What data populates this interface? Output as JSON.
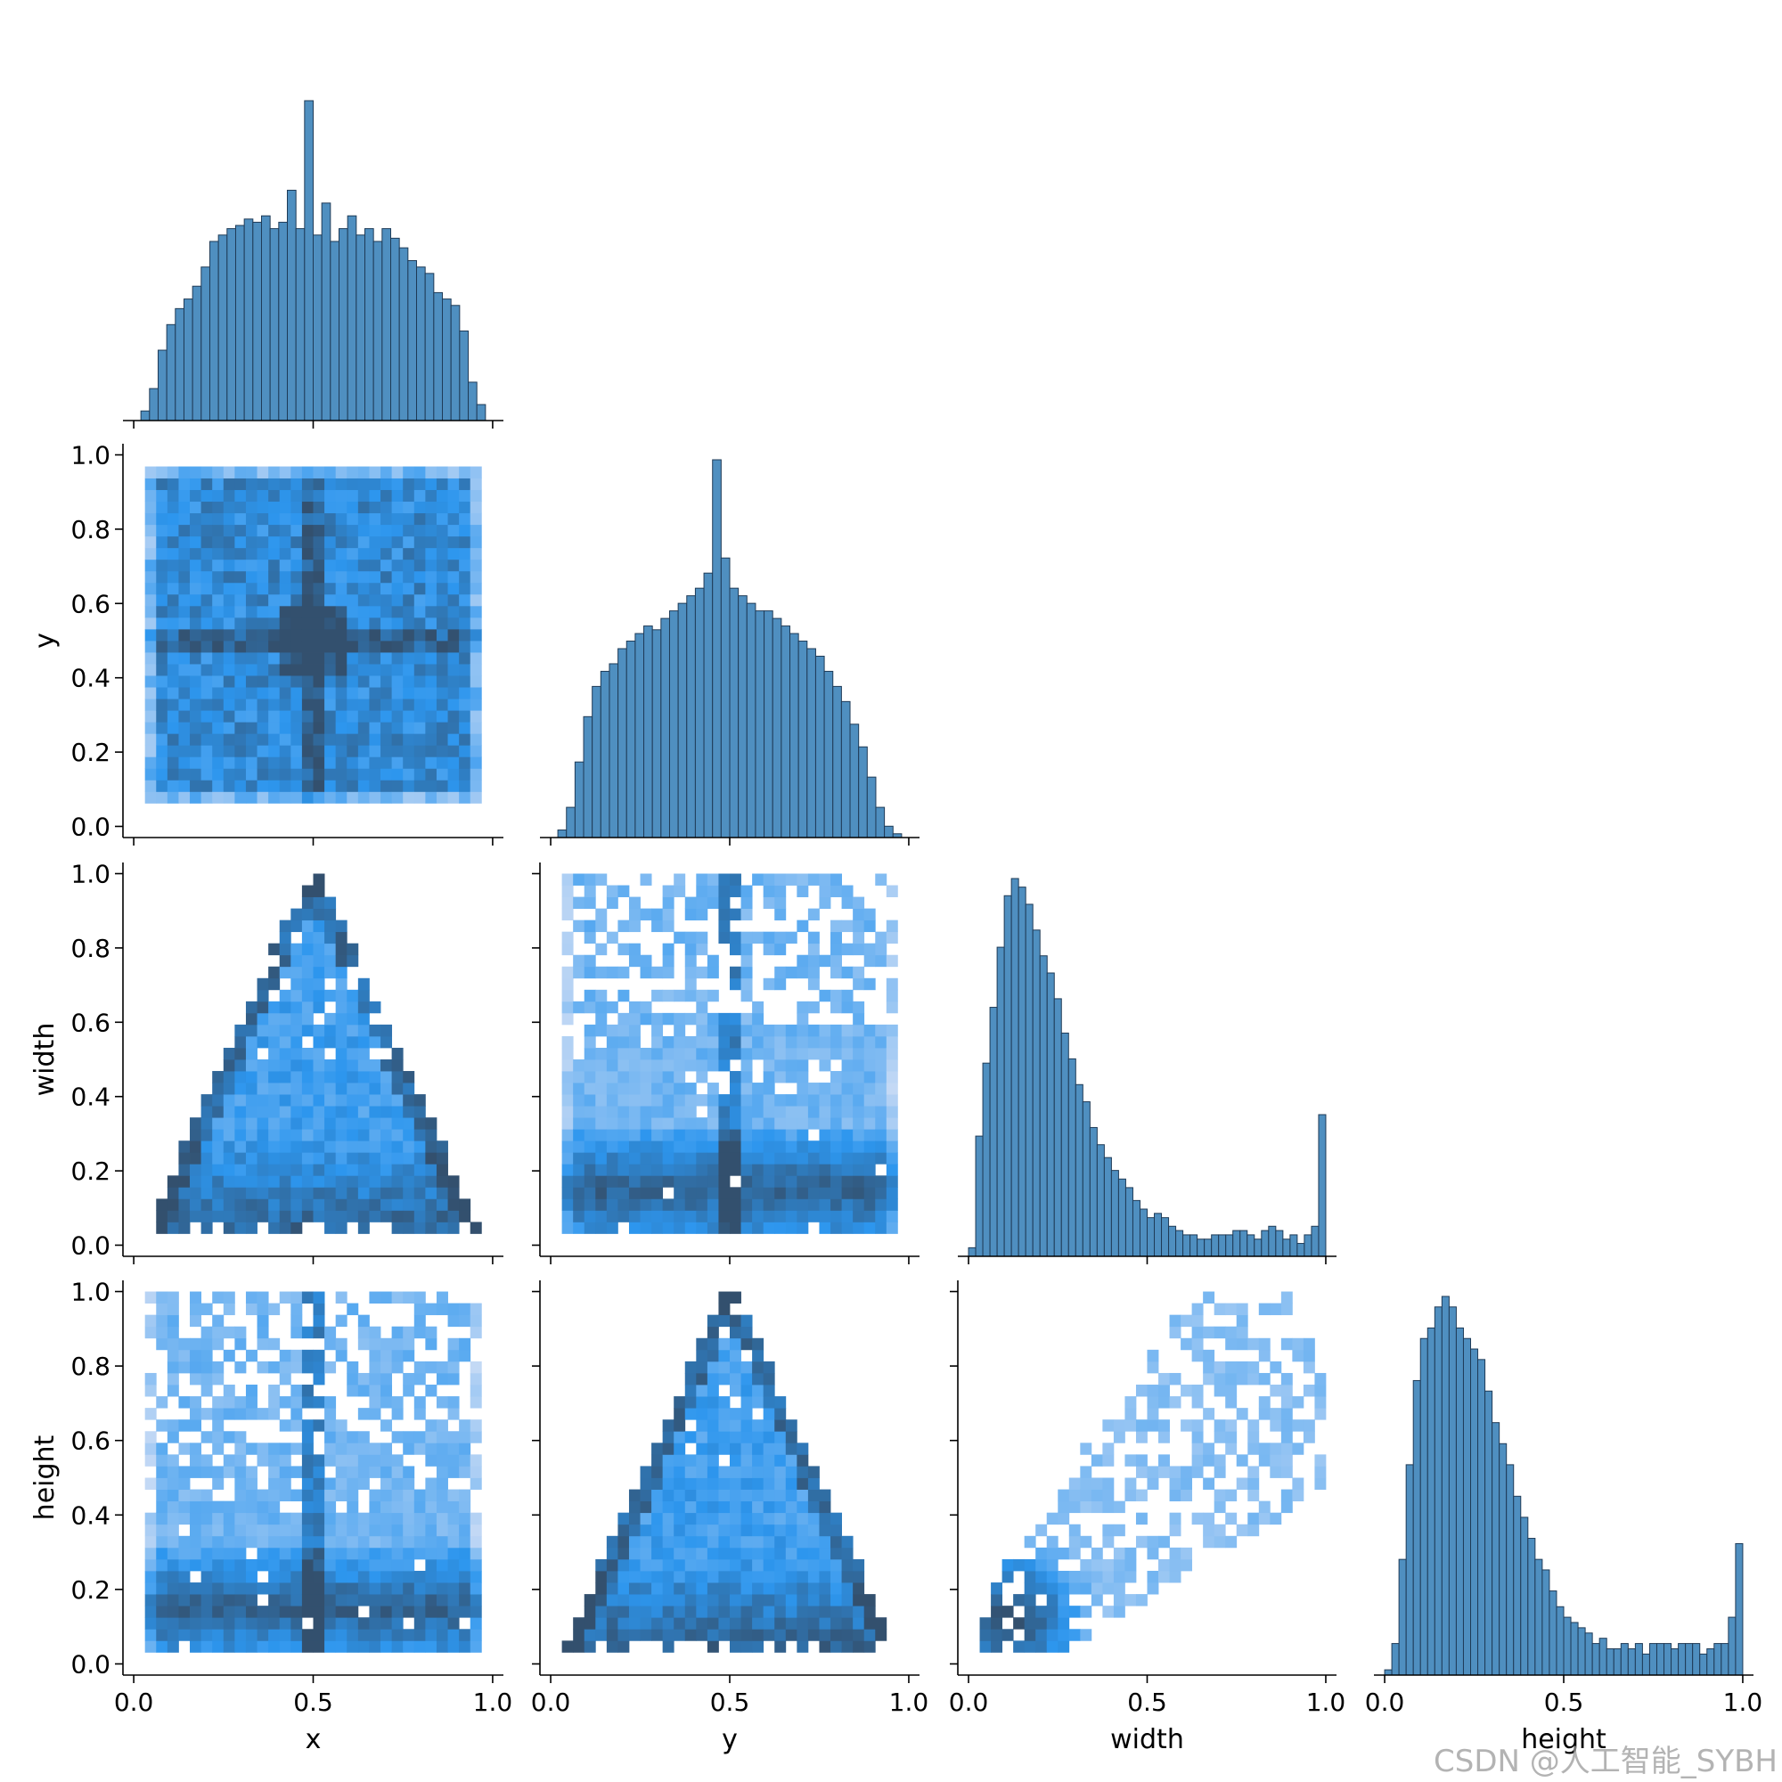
{
  "figure": {
    "type": "pairplot",
    "variables": [
      "x",
      "y",
      "width",
      "height"
    ],
    "diag_kind": "hist",
    "offdiag_kind": "hist2d",
    "corner": true,
    "colors": {
      "bar_fill": "#4f8fc0",
      "bar_edge": "#1f3b57",
      "heat_light": "#c4d9f5",
      "heat_mid": "#2d96ee",
      "heat_dark": "#33506e"
    },
    "watermark": "CSDN @人工智能_SYBH"
  },
  "chart_data": [
    {
      "type": "bar",
      "panel": "x",
      "xlabel": "x",
      "xlim": [
        -0.03,
        1.03
      ],
      "xticks": [
        "0.0",
        "0.5",
        "1.0"
      ],
      "bin_edges": [
        0.02,
        0.98
      ],
      "values": [
        3,
        10,
        22,
        30,
        35,
        38,
        42,
        48,
        56,
        58,
        60,
        61,
        63,
        62,
        64,
        60,
        62,
        72,
        60,
        100,
        58,
        68,
        56,
        60,
        64,
        58,
        60,
        56,
        60,
        57,
        54,
        50,
        48,
        46,
        40,
        38,
        36,
        28,
        12,
        5
      ]
    },
    {
      "type": "heatmap",
      "panel": "x-y",
      "xlabel": "x",
      "ylabel": "y",
      "xlim": [
        -0.03,
        1.03
      ],
      "ylim": [
        -0.03,
        1.03
      ],
      "xticks": [
        "0.0",
        "0.5",
        "1.0"
      ],
      "yticks": [
        "0.0",
        "0.2",
        "0.4",
        "0.6",
        "0.8",
        "1.0"
      ],
      "x_range": [
        0.03,
        0.97
      ],
      "y_range": [
        0.05,
        0.97
      ],
      "peak": [
        0.5,
        0.5
      ]
    },
    {
      "type": "bar",
      "panel": "y",
      "xlabel": "y",
      "xlim": [
        -0.03,
        1.03
      ],
      "xticks": [
        "0.0",
        "0.5",
        "1.0"
      ],
      "bin_edges": [
        0.02,
        0.98
      ],
      "values": [
        2,
        8,
        20,
        32,
        40,
        44,
        46,
        50,
        52,
        54,
        56,
        55,
        58,
        60,
        62,
        64,
        66,
        70,
        100,
        74,
        66,
        64,
        62,
        60,
        60,
        58,
        56,
        54,
        52,
        50,
        48,
        44,
        40,
        36,
        30,
        24,
        16,
        8,
        3,
        1
      ]
    },
    {
      "type": "heatmap",
      "panel": "x-width",
      "xlabel": "x",
      "ylabel": "width",
      "xlim": [
        -0.03,
        1.03
      ],
      "ylim": [
        -0.03,
        1.03
      ],
      "xticks": [
        "0.0",
        "0.5",
        "1.0"
      ],
      "yticks": [
        "0.0",
        "0.2",
        "0.4",
        "0.6",
        "0.8",
        "1.0"
      ],
      "shape": "triangle",
      "apex": [
        0.5,
        1.0
      ]
    },
    {
      "type": "heatmap",
      "panel": "y-width",
      "xlabel": "y",
      "ylabel": "width",
      "xlim": [
        -0.03,
        1.03
      ],
      "ylim": [
        -0.03,
        1.03
      ],
      "xticks": [
        "0.0",
        "0.5",
        "1.0"
      ],
      "yticks": [
        "0.0",
        "0.2",
        "0.4",
        "0.6",
        "0.8",
        "1.0"
      ],
      "shape": "spread",
      "peak_x": 0.5
    },
    {
      "type": "bar",
      "panel": "width",
      "xlabel": "width",
      "xlim": [
        -0.03,
        1.03
      ],
      "xticks": [
        "0.0",
        "0.5",
        "1.0"
      ],
      "bin_edges": [
        0.0,
        1.0
      ],
      "values": [
        2,
        28,
        45,
        58,
        72,
        84,
        88,
        86,
        82,
        76,
        70,
        66,
        60,
        52,
        46,
        40,
        36,
        30,
        26,
        23,
        20,
        18,
        16,
        13,
        11,
        9,
        10,
        9,
        7,
        6,
        5,
        5,
        4,
        4,
        5,
        5,
        5,
        6,
        6,
        5,
        4,
        6,
        7,
        6,
        4,
        5,
        3,
        5,
        7,
        33
      ]
    },
    {
      "type": "heatmap",
      "panel": "x-height",
      "xlabel": "x",
      "ylabel": "height",
      "xlim": [
        -0.03,
        1.03
      ],
      "ylim": [
        -0.03,
        1.03
      ],
      "xticks": [
        "0.0",
        "0.5",
        "1.0"
      ],
      "yticks": [
        "0.0",
        "0.2",
        "0.4",
        "0.6",
        "0.8",
        "1.0"
      ],
      "shape": "spread",
      "peak_x": 0.5
    },
    {
      "type": "heatmap",
      "panel": "y-height",
      "xlabel": "y",
      "ylabel": "height",
      "xlim": [
        -0.03,
        1.03
      ],
      "ylim": [
        -0.03,
        1.03
      ],
      "xticks": [
        "0.0",
        "0.5",
        "1.0"
      ],
      "yticks": [
        "0.0",
        "0.2",
        "0.4",
        "0.6",
        "0.8",
        "1.0"
      ],
      "shape": "triangle",
      "apex": [
        0.5,
        1.0
      ]
    },
    {
      "type": "heatmap",
      "panel": "width-height",
      "xlabel": "width",
      "ylabel": "height",
      "xlim": [
        -0.03,
        1.03
      ],
      "ylim": [
        -0.03,
        1.03
      ],
      "xticks": [
        "0.0",
        "0.5",
        "1.0"
      ],
      "yticks": [
        "0.0",
        "0.2",
        "0.4",
        "0.6",
        "0.8",
        "1.0"
      ],
      "shape": "diagonal",
      "peak": [
        0.12,
        0.12
      ]
    },
    {
      "type": "bar",
      "panel": "height",
      "xlabel": "height",
      "xlim": [
        -0.03,
        1.03
      ],
      "xticks": [
        "0.0",
        "0.5",
        "1.0"
      ],
      "bin_edges": [
        0.0,
        1.0
      ],
      "values": [
        1,
        6,
        22,
        40,
        56,
        64,
        66,
        70,
        72,
        70,
        66,
        64,
        62,
        60,
        54,
        48,
        44,
        40,
        34,
        30,
        26,
        22,
        20,
        16,
        13,
        11,
        10,
        9,
        8,
        6,
        7,
        5,
        5,
        6,
        5,
        6,
        4,
        6,
        6,
        6,
        5,
        6,
        6,
        6,
        4,
        5,
        6,
        6,
        11,
        25
      ]
    }
  ]
}
